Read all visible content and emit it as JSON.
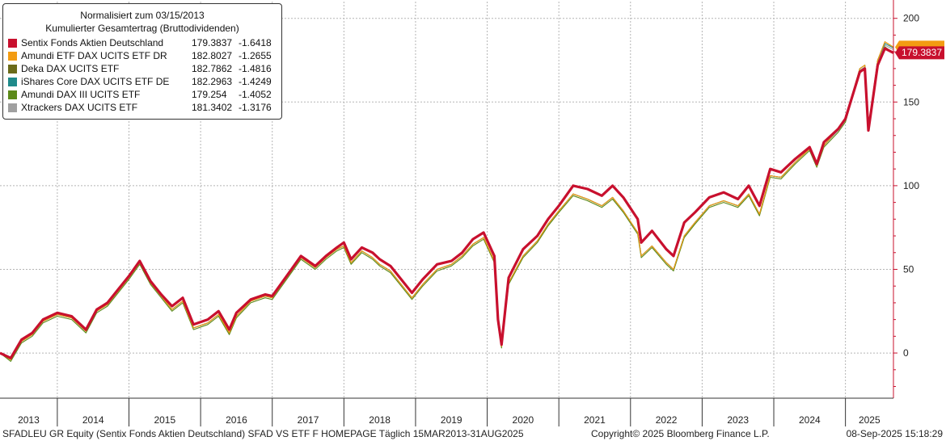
{
  "legend": {
    "title_line1": "Normalisiert zum 03/15/2013",
    "title_line2": "Kumulierter Gesamtertrag (Bruttodividenden)",
    "items": [
      {
        "name": "Sentix Fonds Aktien Deutschland",
        "value": "179.3837",
        "change": "-1.6418",
        "color": "#c8102e"
      },
      {
        "name": "Amundi ETF DAX UCITS ETF DR",
        "value": "182.8027",
        "change": "-1.2655",
        "color": "#f39c12"
      },
      {
        "name": "Deka DAX UCITS ETF",
        "value": "182.7862",
        "change": "-1.4816",
        "color": "#6b6b1a"
      },
      {
        "name": "iShares Core DAX UCITS ETF DE",
        "value": "182.2963",
        "change": "-1.4249",
        "color": "#1f8a8a"
      },
      {
        "name": "Amundi DAX III UCITS ETF",
        "value": "179.254",
        "change": "-1.4052",
        "color": "#5c8a1a"
      },
      {
        "name": "Xtrackers DAX UCITS ETF",
        "value": "181.3402",
        "change": "-1.3176",
        "color": "#a0a0a0"
      }
    ]
  },
  "last_value_label": "179.3837",
  "footer": {
    "left": "SFADLEU GR Equity (Sentix Fonds Aktien Deutschland) SFAD VS ETF F HOMEPAGE  Täglich 15MAR2013-31AUG2025",
    "center": "Copyright© 2025 Bloomberg Finance L.P.",
    "right": "08-Sep-2025 15:18:29"
  },
  "chart_data": {
    "type": "line",
    "title": "Normalisiert zum 03/15/2013",
    "subtitle": "Kumulierter Gesamtertrag (Bruttodividenden)",
    "x_tick_labels": [
      "2013",
      "2014",
      "2015",
      "2016",
      "2017",
      "2018",
      "2019",
      "2020",
      "2021",
      "2022",
      "2023",
      "2024",
      "2025"
    ],
    "y_tick_labels": [
      "0",
      "50",
      "100",
      "150",
      "200"
    ],
    "ylim": [
      -27,
      210
    ],
    "xlim": [
      2013.2,
      2025.67
    ],
    "grid": true,
    "legend_position": "top-left",
    "y_axis_side": "right",
    "x": [
      2013.2,
      2013.35,
      2013.5,
      2013.65,
      2013.8,
      2014.0,
      2014.2,
      2014.4,
      2014.55,
      2014.7,
      2014.85,
      2015.0,
      2015.15,
      2015.3,
      2015.45,
      2015.6,
      2015.75,
      2015.9,
      2016.1,
      2016.25,
      2016.4,
      2016.5,
      2016.7,
      2016.9,
      2017.0,
      2017.2,
      2017.4,
      2017.6,
      2017.75,
      2017.9,
      2018.0,
      2018.1,
      2018.25,
      2018.4,
      2018.5,
      2018.65,
      2018.8,
      2018.95,
      2019.1,
      2019.3,
      2019.5,
      2019.65,
      2019.8,
      2019.95,
      2020.1,
      2020.15,
      2020.2,
      2020.3,
      2020.5,
      2020.7,
      2020.85,
      2021.0,
      2021.2,
      2021.4,
      2021.6,
      2021.75,
      2021.9,
      2022.1,
      2022.15,
      2022.3,
      2022.5,
      2022.6,
      2022.75,
      2022.9,
      2023.1,
      2023.3,
      2023.5,
      2023.65,
      2023.8,
      2023.95,
      2024.1,
      2024.3,
      2024.5,
      2024.6,
      2024.7,
      2024.9,
      2025.0,
      2025.2,
      2025.27,
      2025.32,
      2025.45,
      2025.55,
      2025.67
    ],
    "series": [
      {
        "name": "Sentix Fonds Aktien Deutschland",
        "values": [
          0,
          -3,
          8,
          12,
          20,
          24,
          22,
          14,
          26,
          30,
          38,
          46,
          55,
          43,
          35,
          28,
          33,
          17,
          20,
          25,
          14,
          24,
          32,
          35,
          34,
          46,
          58,
          52,
          58,
          63,
          66,
          56,
          63,
          60,
          56,
          52,
          44,
          36,
          44,
          53,
          55,
          60,
          68,
          72,
          58,
          20,
          5,
          45,
          62,
          70,
          80,
          88,
          100,
          98,
          94,
          100,
          93,
          80,
          66,
          73,
          62,
          58,
          78,
          84,
          93,
          96,
          92,
          100,
          88,
          110,
          108,
          116,
          123,
          113,
          126,
          134,
          140,
          168,
          170,
          133,
          172,
          182,
          179.4
        ]
      },
      {
        "name": "Amundi ETF DAX UCITS ETF DR",
        "values": [
          0,
          -4,
          7,
          11,
          19,
          23,
          21,
          13,
          25,
          29,
          37,
          45,
          54,
          42,
          34,
          26,
          31,
          15,
          18,
          23,
          12,
          22,
          31,
          34,
          33,
          45,
          57,
          51,
          57,
          62,
          64,
          54,
          61,
          57,
          53,
          49,
          41,
          33,
          41,
          50,
          53,
          58,
          65,
          69,
          55,
          18,
          4,
          42,
          58,
          67,
          77,
          85,
          95,
          92,
          88,
          93,
          85,
          72,
          58,
          64,
          54,
          50,
          70,
          78,
          88,
          91,
          88,
          95,
          83,
          106,
          105,
          114,
          122,
          112,
          124,
          134,
          140,
          170,
          172,
          135,
          175,
          186,
          182.8
        ]
      },
      {
        "name": "Deka DAX UCITS ETF",
        "values": [
          0,
          -4,
          7,
          11,
          19,
          23,
          21,
          13,
          25,
          29,
          37,
          45,
          54,
          42,
          34,
          26,
          31,
          15,
          18,
          23,
          12,
          22,
          31,
          34,
          33,
          45,
          57,
          51,
          57,
          62,
          64,
          54,
          61,
          57,
          53,
          49,
          41,
          33,
          41,
          50,
          53,
          58,
          65,
          69,
          55,
          18,
          4,
          42,
          58,
          67,
          77,
          85,
          95,
          92,
          88,
          93,
          85,
          72,
          58,
          64,
          54,
          50,
          70,
          78,
          88,
          91,
          88,
          95,
          83,
          106,
          105,
          114,
          122,
          112,
          124,
          134,
          140,
          170,
          172,
          135,
          175,
          186,
          182.8
        ]
      },
      {
        "name": "iShares Core DAX UCITS ETF DE",
        "values": [
          0,
          -4,
          7,
          11,
          19,
          23,
          21,
          13,
          25,
          29,
          37,
          45,
          54,
          42,
          34,
          26,
          31,
          15,
          18,
          23,
          12,
          22,
          31,
          34,
          33,
          45,
          57,
          51,
          57,
          62,
          64,
          54,
          61,
          57,
          53,
          49,
          41,
          33,
          41,
          50,
          53,
          58,
          65,
          69,
          55,
          18,
          4,
          42,
          58,
          67,
          77,
          85,
          95,
          92,
          88,
          93,
          85,
          72,
          58,
          64,
          54,
          50,
          70,
          78,
          88,
          91,
          88,
          95,
          83,
          106,
          105,
          114,
          122,
          112,
          124,
          134,
          140,
          170,
          172,
          135,
          175,
          185,
          182.3
        ]
      },
      {
        "name": "Amundi DAX III UCITS ETF",
        "values": [
          0,
          -5,
          6,
          10,
          18,
          22,
          20,
          12,
          24,
          28,
          36,
          44,
          53,
          41,
          33,
          25,
          30,
          14,
          17,
          22,
          11,
          21,
          30,
          33,
          32,
          44,
          56,
          50,
          56,
          61,
          63,
          53,
          60,
          56,
          52,
          48,
          40,
          32,
          40,
          49,
          52,
          57,
          64,
          68,
          54,
          17,
          3,
          41,
          57,
          66,
          76,
          84,
          94,
          91,
          87,
          92,
          84,
          71,
          57,
          63,
          53,
          49,
          69,
          77,
          87,
          90,
          87,
          94,
          82,
          105,
          104,
          113,
          121,
          111,
          123,
          132,
          138,
          168,
          170,
          133,
          173,
          183,
          179.3
        ]
      },
      {
        "name": "Xtrackers DAX UCITS ETF",
        "values": [
          0,
          -4,
          7,
          11,
          19,
          23,
          21,
          13,
          25,
          29,
          37,
          45,
          54,
          42,
          34,
          26,
          31,
          15,
          18,
          23,
          12,
          22,
          31,
          34,
          33,
          45,
          57,
          51,
          57,
          62,
          64,
          54,
          61,
          57,
          53,
          49,
          41,
          33,
          41,
          50,
          53,
          58,
          65,
          69,
          55,
          18,
          4,
          42,
          58,
          67,
          77,
          85,
          95,
          92,
          88,
          93,
          85,
          72,
          58,
          64,
          54,
          50,
          70,
          78,
          88,
          91,
          88,
          95,
          83,
          106,
          105,
          114,
          122,
          112,
          124,
          133,
          139,
          169,
          171,
          134,
          174,
          184,
          181.3
        ]
      }
    ]
  }
}
